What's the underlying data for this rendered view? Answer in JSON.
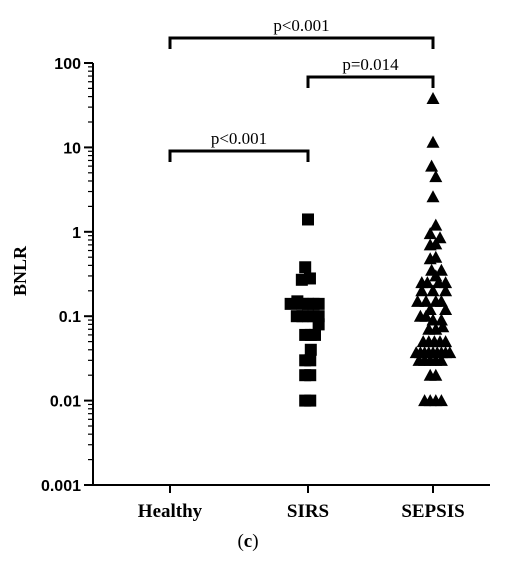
{
  "chart_data": {
    "type": "scatter",
    "ylabel": "BNLR",
    "yscale": "log",
    "ylim": [
      0.001,
      100
    ],
    "y_ticks": [
      {
        "value": 100,
        "label": "100"
      },
      {
        "value": 10,
        "label": "10"
      },
      {
        "value": 1,
        "label": "1"
      },
      {
        "value": 0.1,
        "label": "0.1"
      },
      {
        "value": 0.01,
        "label": "0.01"
      },
      {
        "value": 0.001,
        "label": "0.001"
      }
    ],
    "grid": false,
    "categories": [
      "Healthy",
      "SIRS",
      "SEPSIS"
    ],
    "series": [
      {
        "category": "SIRS",
        "marker": "square",
        "color": "#000000",
        "points": [
          {
            "o": 0.0,
            "y": 1.4
          },
          {
            "o": -0.1,
            "y": 0.38
          },
          {
            "o": 0.07,
            "y": 0.28
          },
          {
            "o": -0.22,
            "y": 0.27
          },
          {
            "o": -0.62,
            "y": 0.14
          },
          {
            "o": -0.38,
            "y": 0.15
          },
          {
            "o": -0.2,
            "y": 0.14
          },
          {
            "o": 0.0,
            "y": 0.14
          },
          {
            "o": 0.2,
            "y": 0.14
          },
          {
            "o": 0.38,
            "y": 0.14
          },
          {
            "o": 0.38,
            "y": 0.1
          },
          {
            "o": -0.4,
            "y": 0.1
          },
          {
            "o": -0.2,
            "y": 0.1
          },
          {
            "o": 0.0,
            "y": 0.1
          },
          {
            "o": 0.2,
            "y": 0.1
          },
          {
            "o": 0.38,
            "y": 0.08
          },
          {
            "o": -0.1,
            "y": 0.06
          },
          {
            "o": 0.1,
            "y": 0.06
          },
          {
            "o": 0.25,
            "y": 0.06
          },
          {
            "o": 0.1,
            "y": 0.04
          },
          {
            "o": -0.1,
            "y": 0.03
          },
          {
            "o": 0.08,
            "y": 0.03
          },
          {
            "o": -0.1,
            "y": 0.02
          },
          {
            "o": 0.08,
            "y": 0.02
          },
          {
            "o": -0.1,
            "y": 0.01
          },
          {
            "o": 0.08,
            "y": 0.01
          }
        ]
      },
      {
        "category": "SEPSIS",
        "marker": "triangle",
        "color": "#000000",
        "points": [
          {
            "o": 0.0,
            "y": 38
          },
          {
            "o": 0.0,
            "y": 11.5
          },
          {
            "o": -0.05,
            "y": 6
          },
          {
            "o": 0.1,
            "y": 4.5
          },
          {
            "o": 0.0,
            "y": 2.6
          },
          {
            "o": 0.1,
            "y": 1.2
          },
          {
            "o": -0.1,
            "y": 0.95
          },
          {
            "o": 0.25,
            "y": 0.85
          },
          {
            "o": -0.1,
            "y": 0.7
          },
          {
            "o": 0.1,
            "y": 0.72
          },
          {
            "o": -0.1,
            "y": 0.48
          },
          {
            "o": 0.1,
            "y": 0.5
          },
          {
            "o": -0.05,
            "y": 0.35
          },
          {
            "o": 0.1,
            "y": 0.3
          },
          {
            "o": 0.3,
            "y": 0.35
          },
          {
            "o": -0.4,
            "y": 0.25
          },
          {
            "o": -0.2,
            "y": 0.25
          },
          {
            "o": 0.2,
            "y": 0.25
          },
          {
            "o": 0.45,
            "y": 0.25
          },
          {
            "o": -0.4,
            "y": 0.2
          },
          {
            "o": 0.0,
            "y": 0.2
          },
          {
            "o": 0.45,
            "y": 0.2
          },
          {
            "o": -0.55,
            "y": 0.15
          },
          {
            "o": -0.25,
            "y": 0.15
          },
          {
            "o": 0.1,
            "y": 0.15
          },
          {
            "o": 0.3,
            "y": 0.15
          },
          {
            "o": -0.1,
            "y": 0.12
          },
          {
            "o": 0.45,
            "y": 0.12
          },
          {
            "o": -0.45,
            "y": 0.1
          },
          {
            "o": -0.25,
            "y": 0.1
          },
          {
            "o": 0.0,
            "y": 0.09
          },
          {
            "o": 0.3,
            "y": 0.09
          },
          {
            "o": -0.15,
            "y": 0.07
          },
          {
            "o": 0.1,
            "y": 0.07
          },
          {
            "o": 0.35,
            "y": 0.075
          },
          {
            "o": -0.35,
            "y": 0.05
          },
          {
            "o": -0.15,
            "y": 0.05
          },
          {
            "o": 0.05,
            "y": 0.05
          },
          {
            "o": 0.25,
            "y": 0.05
          },
          {
            "o": 0.45,
            "y": 0.05
          },
          {
            "o": -0.6,
            "y": 0.037
          },
          {
            "o": -0.45,
            "y": 0.037
          },
          {
            "o": -0.3,
            "y": 0.037
          },
          {
            "o": -0.15,
            "y": 0.037
          },
          {
            "o": 0.0,
            "y": 0.037
          },
          {
            "o": 0.15,
            "y": 0.037
          },
          {
            "o": 0.3,
            "y": 0.037
          },
          {
            "o": 0.45,
            "y": 0.037
          },
          {
            "o": 0.6,
            "y": 0.037
          },
          {
            "o": -0.5,
            "y": 0.03
          },
          {
            "o": -0.3,
            "y": 0.03
          },
          {
            "o": -0.1,
            "y": 0.03
          },
          {
            "o": 0.1,
            "y": 0.03
          },
          {
            "o": 0.3,
            "y": 0.03
          },
          {
            "o": -0.1,
            "y": 0.02
          },
          {
            "o": 0.1,
            "y": 0.02
          },
          {
            "o": -0.3,
            "y": 0.01
          },
          {
            "o": -0.1,
            "y": 0.01
          },
          {
            "o": 0.1,
            "y": 0.01
          },
          {
            "o": 0.3,
            "y": 0.01
          }
        ]
      }
    ],
    "annotations": [
      {
        "from": "Healthy",
        "to": "SEPSIS",
        "label": "p<0.001",
        "level": 1
      },
      {
        "from": "SIRS",
        "to": "SEPSIS",
        "label": "p=0.014",
        "level": 2
      },
      {
        "from": "Healthy",
        "to": "SIRS",
        "label": "p<0.001",
        "level": 3
      }
    ]
  },
  "caption": {
    "open": "(",
    "letter": "c",
    "close": ")"
  }
}
